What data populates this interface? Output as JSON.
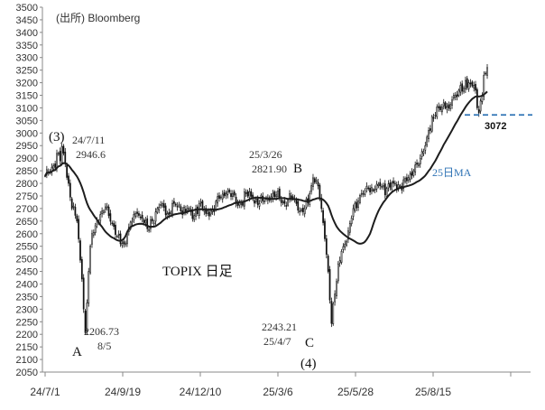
{
  "chart_data": {
    "type": "candlestick",
    "title": "TOPIX 日足",
    "source": "(出所) Bloomberg",
    "ylim": [
      2050,
      3500
    ],
    "yticks": [
      2050,
      2100,
      2150,
      2200,
      2250,
      2300,
      2350,
      2400,
      2450,
      2500,
      2550,
      2600,
      2650,
      2700,
      2750,
      2800,
      2850,
      2900,
      2950,
      3000,
      3050,
      3100,
      3150,
      3200,
      3250,
      3300,
      3350,
      3400,
      3450,
      3500
    ],
    "xticks": [
      "24/7/1",
      "24/9/19",
      "24/12/10",
      "25/3/6",
      "25/5/28",
      "25/8/15"
    ],
    "ma_label": "25日MA",
    "ma_color": "#2f73b5",
    "candle_color": "#111111",
    "level_line": {
      "value": 3072,
      "label": "3072",
      "color": "#2f73b5"
    },
    "anchors": [
      [
        0,
        2830
      ],
      [
        5,
        2870
      ],
      [
        8,
        2920
      ],
      [
        9,
        2890
      ],
      [
        10,
        2946.6
      ],
      [
        12,
        2880
      ],
      [
        14,
        2800
      ],
      [
        16,
        2700
      ],
      [
        19,
        2650
      ],
      [
        22,
        2420
      ],
      [
        24,
        2206.73
      ],
      [
        26,
        2450
      ],
      [
        28,
        2600
      ],
      [
        31,
        2650
      ],
      [
        34,
        2690
      ],
      [
        37,
        2710
      ],
      [
        40,
        2640
      ],
      [
        43,
        2590
      ],
      [
        45,
        2560
      ],
      [
        47,
        2560
      ],
      [
        49,
        2600
      ],
      [
        52,
        2650
      ],
      [
        55,
        2680
      ],
      [
        58,
        2660
      ],
      [
        61,
        2620
      ],
      [
        64,
        2650
      ],
      [
        67,
        2700
      ],
      [
        70,
        2720
      ],
      [
        73,
        2680
      ],
      [
        77,
        2720
      ],
      [
        81,
        2690
      ],
      [
        85,
        2700
      ],
      [
        88,
        2660
      ],
      [
        92,
        2720
      ],
      [
        96,
        2680
      ],
      [
        100,
        2700
      ],
      [
        104,
        2740
      ],
      [
        108,
        2760
      ],
      [
        112,
        2760
      ],
      [
        114,
        2720
      ],
      [
        117,
        2720
      ],
      [
        120,
        2760
      ],
      [
        124,
        2740
      ],
      [
        128,
        2720
      ],
      [
        132,
        2740
      ],
      [
        136,
        2760
      ],
      [
        140,
        2740
      ],
      [
        143,
        2720
      ],
      [
        147,
        2740
      ],
      [
        150,
        2720
      ],
      [
        152,
        2690
      ],
      [
        155,
        2700
      ],
      [
        158,
        2760
      ],
      [
        160,
        2821.9
      ],
      [
        163,
        2790
      ],
      [
        165,
        2700
      ],
      [
        167,
        2580
      ],
      [
        169,
        2450
      ],
      [
        171,
        2243.21
      ],
      [
        173,
        2360
      ],
      [
        175,
        2480
      ],
      [
        177,
        2530
      ],
      [
        180,
        2570
      ],
      [
        182,
        2640
      ],
      [
        184,
        2700
      ],
      [
        187,
        2730
      ],
      [
        190,
        2760
      ],
      [
        193,
        2780
      ],
      [
        196,
        2770
      ],
      [
        200,
        2790
      ],
      [
        204,
        2780
      ],
      [
        208,
        2800
      ],
      [
        212,
        2790
      ],
      [
        216,
        2810
      ],
      [
        220,
        2850
      ],
      [
        224,
        2900
      ],
      [
        227,
        2950
      ],
      [
        229,
        3010
      ],
      [
        232,
        3060
      ],
      [
        235,
        3100
      ],
      [
        238,
        3120
      ],
      [
        241,
        3100
      ],
      [
        244,
        3150
      ],
      [
        247,
        3170
      ],
      [
        250,
        3180
      ],
      [
        253,
        3200
      ],
      [
        256,
        3190
      ],
      [
        257,
        3170
      ],
      [
        258,
        3100
      ],
      [
        259,
        3080
      ],
      [
        261,
        3150
      ],
      [
        262,
        3230
      ],
      [
        264,
        3260
      ]
    ],
    "annotations": [
      {
        "id": "wave-3",
        "text": "(3)",
        "index": 10
      },
      {
        "id": "high-date",
        "text": "24/7/11",
        "index": 10
      },
      {
        "id": "high-value",
        "text": "2946.6",
        "index": 10
      },
      {
        "id": "a-value",
        "text": "2206.73",
        "index": 24
      },
      {
        "id": "a-date",
        "text": "8/5",
        "index": 24
      },
      {
        "id": "a-label",
        "text": "A",
        "index": 24
      },
      {
        "id": "b-date",
        "text": "25/3/26",
        "index": 160
      },
      {
        "id": "b-value",
        "text": "2821.90",
        "index": 160
      },
      {
        "id": "b-label",
        "text": "B",
        "index": 160
      },
      {
        "id": "c-value",
        "text": "2243.21",
        "index": 171
      },
      {
        "id": "c-date",
        "text": "25/4/7",
        "index": 171
      },
      {
        "id": "c-label",
        "text": "C",
        "index": 171
      },
      {
        "id": "wave-4",
        "text": "(4)",
        "index": 171
      }
    ]
  }
}
